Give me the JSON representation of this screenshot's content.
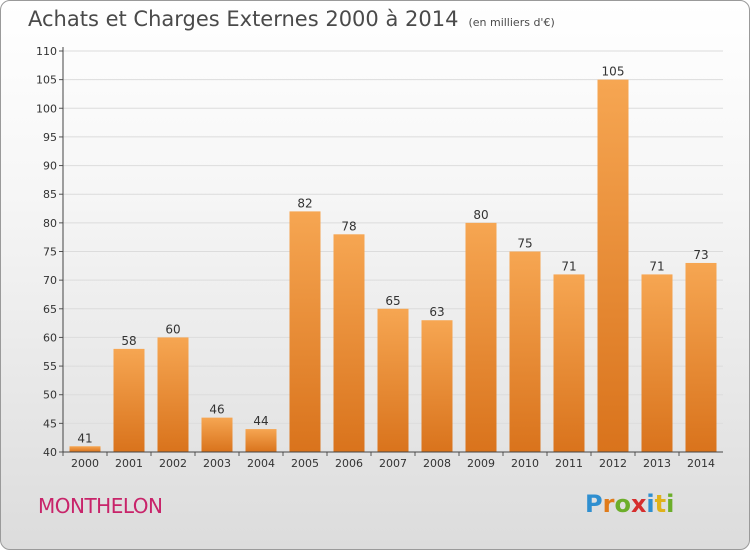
{
  "header": {
    "title": "Achats et Charges Externes 2000 à 2014",
    "unit": "(en milliers d'€)"
  },
  "footer": {
    "city": "MONTHELON",
    "logo_letters": [
      "P",
      "r",
      "o",
      "x",
      "i",
      "t",
      "i"
    ],
    "logo_colors": [
      "#2f8fd0",
      "#e07b1a",
      "#6cae2a",
      "#d62e2e",
      "#2f8fd0",
      "#e0b21a",
      "#6cae2a"
    ]
  },
  "colors": {
    "bar_light": "#f6a652",
    "bar_dark": "#d9731c",
    "grid": "#dcdcdc",
    "text": "#333333",
    "city": "#c8246a"
  },
  "chart_data": {
    "type": "bar",
    "title": "Achats et Charges Externes 2000 à 2014",
    "subtitle": "(en milliers d'€)",
    "xlabel": "",
    "ylabel": "",
    "categories": [
      "2000",
      "2001",
      "2002",
      "2003",
      "2004",
      "2005",
      "2006",
      "2007",
      "2008",
      "2009",
      "2010",
      "2011",
      "2012",
      "2013",
      "2014"
    ],
    "values": [
      41,
      58,
      60,
      46,
      44,
      82,
      78,
      65,
      63,
      80,
      75,
      71,
      105,
      71,
      73
    ],
    "ylim": [
      40,
      110
    ],
    "yticks": [
      40,
      45,
      50,
      55,
      60,
      65,
      70,
      75,
      80,
      85,
      90,
      95,
      100,
      105,
      110
    ],
    "grid": "horizontal",
    "legend": "none"
  }
}
